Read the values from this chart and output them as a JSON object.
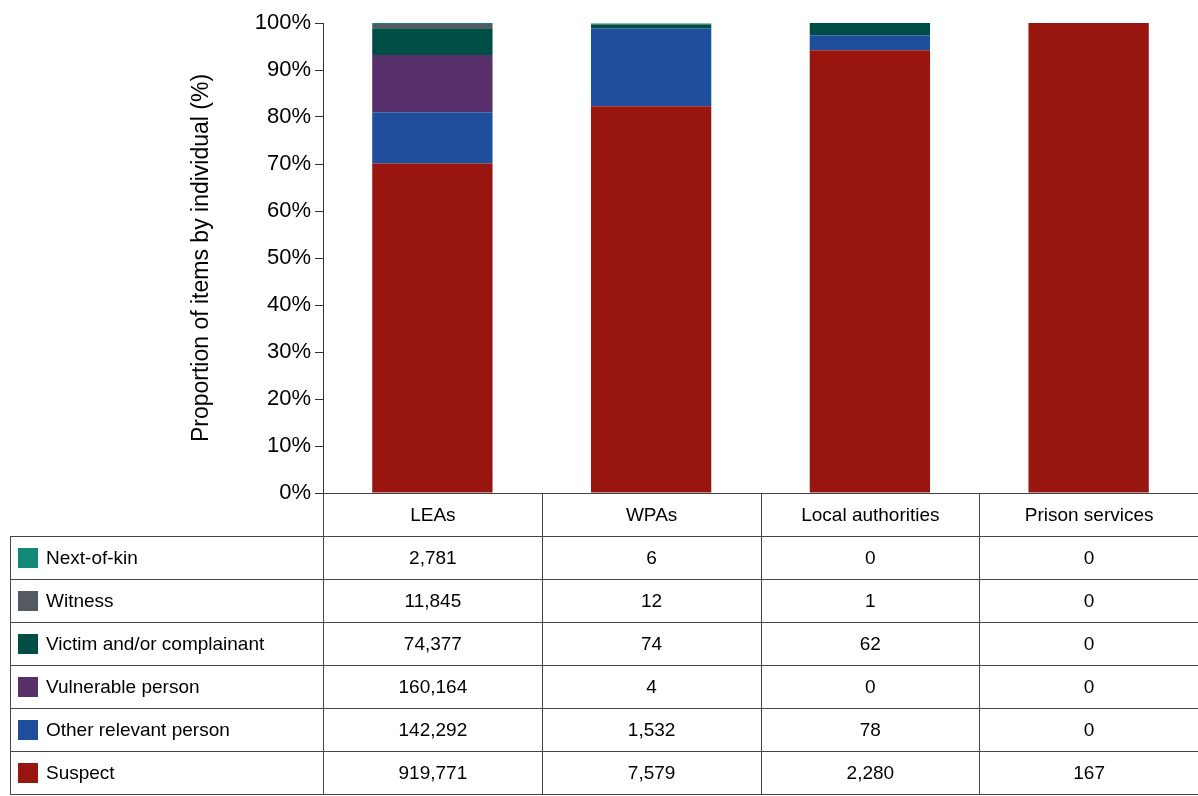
{
  "chart_data": [
    {
      "type": "bar",
      "stacked": true,
      "ylabel": "Proportion of items by individual (%)",
      "categories": [
        null,
        null,
        null,
        null
      ],
      "ylim": [
        0,
        100
      ],
      "yticks": [
        {
          "value": 0,
          "label": "0%"
        },
        {
          "value": 10,
          "label": "10%"
        },
        {
          "value": 20,
          "label": "20%"
        },
        {
          "value": 30,
          "label": "30%"
        },
        {
          "value": 40,
          "label": "40%"
        },
        {
          "value": 50,
          "label": "50%"
        },
        {
          "value": 60,
          "label": "60%"
        },
        {
          "value": 70,
          "label": "70%"
        },
        {
          "value": 80,
          "label": "80%"
        },
        {
          "value": 90,
          "label": "90%"
        },
        {
          "value": 100,
          "label": "100%"
        }
      ],
      "series": [
        {
          "color": "#99150f",
          "values": [
            70.1,
            82.3,
            94.2,
            100
          ]
        },
        {
          "color": "#1f4e9c",
          "values": [
            10.9,
            16.6,
            3.2,
            0
          ]
        },
        {
          "color": "#57306b",
          "values": [
            12.2,
            0,
            0,
            0
          ]
        },
        {
          "color": "#004d45",
          "values": [
            5.7,
            0.8,
            2.6,
            0
          ]
        },
        {
          "color": "#555a60",
          "values": [
            0.9,
            0.1,
            0,
            0
          ]
        },
        {
          "color": "#138a77",
          "values": [
            0.2,
            0.1,
            0,
            0
          ]
        }
      ]
    },
    {
      "type": "other",
      "legend": "left",
      "categories": [
        "LEAs",
        "WPAs",
        "Local authorities",
        "Prison services"
      ],
      "series": [
        {
          "name": "Suspect",
          "color": "#99150f",
          "values": [
            919771,
            7579,
            2280,
            167
          ],
          "value_labels": [
            "919,771",
            "7,579",
            "2,280",
            "167"
          ]
        },
        {
          "name": "Other relevant person",
          "color": "#1f4e9c",
          "values": [
            142292,
            1532,
            78,
            0
          ],
          "value_labels": [
            "142,292",
            "1,532",
            "78",
            "0"
          ]
        },
        {
          "name": "Vulnerable person",
          "color": "#57306b",
          "values": [
            160164,
            4,
            0,
            0
          ],
          "value_labels": [
            "160,164",
            "4",
            "0",
            "0"
          ]
        },
        {
          "name": "Victim and/or complainant",
          "color": "#004d45",
          "values": [
            74377,
            74,
            62,
            0
          ],
          "value_labels": [
            "74,377",
            "74",
            "62",
            "0"
          ]
        },
        {
          "name": "Witness",
          "color": "#555a60",
          "values": [
            11845,
            12,
            1,
            0
          ],
          "value_labels": [
            "11,845",
            "12",
            "1",
            "0"
          ]
        },
        {
          "name": "Next-of-kin",
          "color": "#138a77",
          "values": [
            2781,
            6,
            0,
            0
          ],
          "value_labels": [
            "2,781",
            "6",
            "0",
            "0"
          ]
        }
      ]
    }
  ]
}
